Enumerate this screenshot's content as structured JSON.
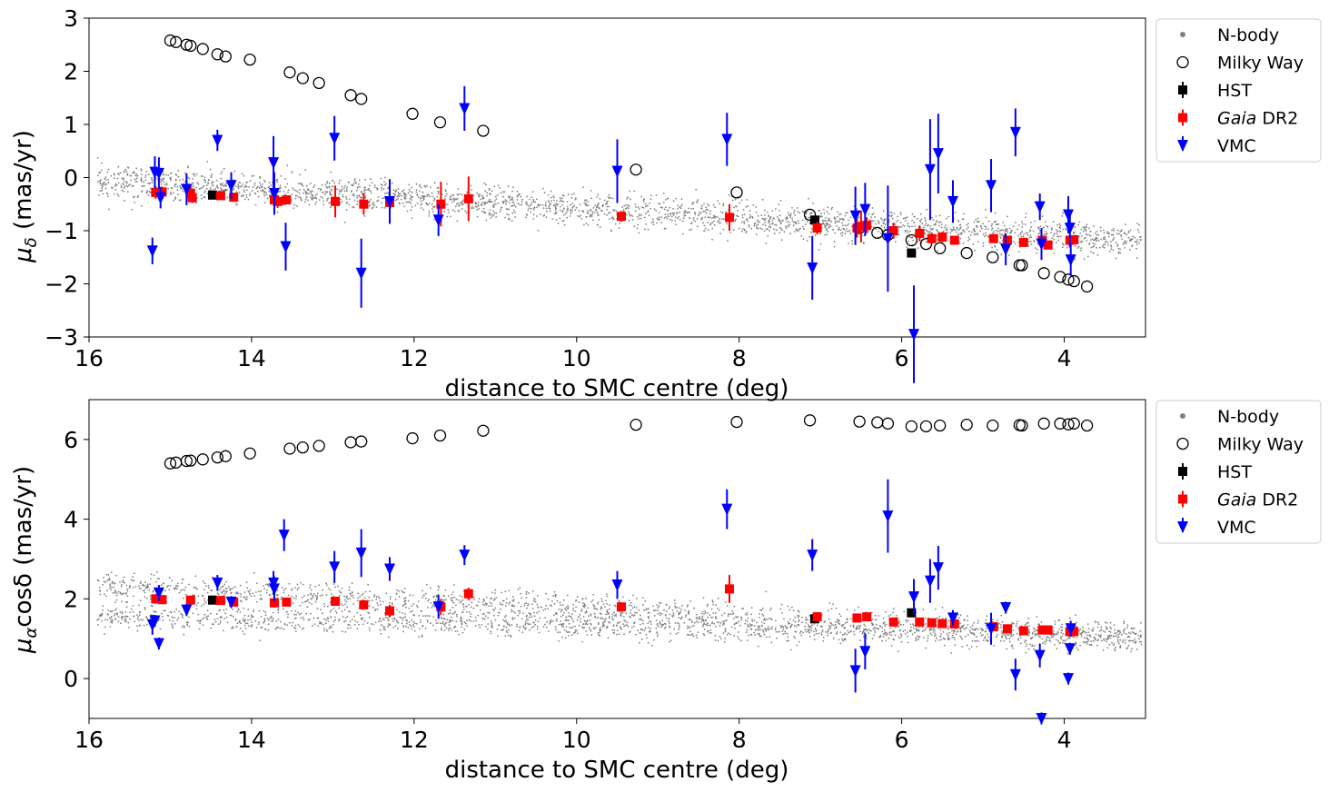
{
  "colors": {
    "nbody": "#808080",
    "milkyway": "#000000",
    "hst": "#000000",
    "gaia": "#ff0000",
    "vmc": "#0000ff"
  },
  "legend": [
    {
      "key": "nbody",
      "label": "N-body",
      "marker": "dot"
    },
    {
      "key": "milkyway",
      "label": "Milky Way",
      "marker": "circle"
    },
    {
      "key": "hst",
      "label": "HST",
      "marker": "square"
    },
    {
      "key": "gaia",
      "label_italic": "Gaia",
      "label_rest": " DR2",
      "marker": "square"
    },
    {
      "key": "vmc",
      "label": "VMC",
      "marker": "triangle"
    }
  ],
  "chart_data": [
    {
      "type": "scatter",
      "panel": "top",
      "xlabel": "distance to SMC centre (deg)",
      "ylabel_symbol": "μ",
      "ylabel_sub": "δ",
      "ylabel_rest": " (mas/yr)",
      "xlim": [
        16,
        3
      ],
      "ylim": [
        -3,
        3
      ],
      "xticks": [
        16,
        14,
        12,
        10,
        8,
        6,
        4
      ],
      "yticks": [
        3,
        2,
        1,
        0,
        -1,
        -2,
        -3
      ],
      "ytick_labels": [
        "3",
        "2",
        "1",
        "0",
        "−1",
        "−2",
        "−3"
      ],
      "nbody_band": {
        "x_range": [
          15.9,
          3.05
        ],
        "bands": [
          {
            "y_start": -0.05,
            "y_end": -1.2,
            "spread": 0.28
          }
        ],
        "count": 2600
      },
      "series": [
        {
          "name": "Milky Way",
          "key": "milkyway",
          "points": [
            [
              15.0,
              2.58
            ],
            [
              14.93,
              2.55
            ],
            [
              14.8,
              2.5
            ],
            [
              14.75,
              2.48
            ],
            [
              14.6,
              2.42
            ],
            [
              14.42,
              2.32
            ],
            [
              14.32,
              2.28
            ],
            [
              14.02,
              2.22
            ],
            [
              13.53,
              1.98
            ],
            [
              13.37,
              1.87
            ],
            [
              13.17,
              1.78
            ],
            [
              12.78,
              1.55
            ],
            [
              12.65,
              1.48
            ],
            [
              12.02,
              1.2
            ],
            [
              11.68,
              1.04
            ],
            [
              11.15,
              0.88
            ],
            [
              9.27,
              0.15
            ],
            [
              8.03,
              -0.28
            ],
            [
              7.13,
              -0.7
            ],
            [
              6.52,
              -0.95
            ],
            [
              6.3,
              -1.04
            ],
            [
              6.17,
              -1.08
            ],
            [
              5.88,
              -1.18
            ],
            [
              5.7,
              -1.25
            ],
            [
              5.53,
              -1.33
            ],
            [
              5.2,
              -1.42
            ],
            [
              4.88,
              -1.5
            ],
            [
              4.55,
              -1.65
            ],
            [
              4.52,
              -1.65
            ],
            [
              4.25,
              -1.8
            ],
            [
              4.05,
              -1.87
            ],
            [
              3.95,
              -1.92
            ],
            [
              3.88,
              -1.95
            ],
            [
              3.72,
              -2.05
            ]
          ]
        },
        {
          "name": "HST",
          "key": "hst",
          "points": [
            [
              14.48,
              -0.33,
              0.05
            ],
            [
              7.07,
              -0.8,
              0.06
            ],
            [
              5.88,
              -1.42,
              0.06
            ]
          ]
        },
        {
          "name": "Gaia DR2",
          "key": "gaia",
          "points": [
            [
              15.18,
              -0.28,
              0.12
            ],
            [
              15.1,
              -0.27,
              0.1
            ],
            [
              14.75,
              -0.3,
              0.15
            ],
            [
              14.73,
              -0.38,
              0.1
            ],
            [
              14.38,
              -0.34,
              0.08
            ],
            [
              14.22,
              -0.37,
              0.07
            ],
            [
              13.72,
              -0.42,
              0.15
            ],
            [
              13.68,
              -0.45,
              0.12
            ],
            [
              13.57,
              -0.42,
              0.08
            ],
            [
              12.97,
              -0.45,
              0.3
            ],
            [
              12.62,
              -0.5,
              0.2
            ],
            [
              12.3,
              -0.47,
              0.4
            ],
            [
              11.67,
              -0.5,
              0.42
            ],
            [
              11.33,
              -0.4,
              0.42
            ],
            [
              9.45,
              -0.73,
              0.1
            ],
            [
              8.12,
              -0.75,
              0.25
            ],
            [
              7.04,
              -0.95,
              0.12
            ],
            [
              6.55,
              -0.95,
              0.18
            ],
            [
              6.5,
              -0.92,
              0.3
            ],
            [
              6.43,
              -0.9,
              0.15
            ],
            [
              6.1,
              -1.0,
              0.15
            ],
            [
              5.78,
              -1.05,
              0.15
            ],
            [
              5.63,
              -1.15,
              0.1
            ],
            [
              5.5,
              -1.12,
              0.1
            ],
            [
              5.35,
              -1.18,
              0.08
            ],
            [
              4.87,
              -1.15,
              0.08
            ],
            [
              4.7,
              -1.18,
              0.06
            ],
            [
              4.5,
              -1.22,
              0.06
            ],
            [
              4.27,
              -1.18,
              0.06
            ],
            [
              4.2,
              -1.27,
              0.06
            ],
            [
              3.93,
              -1.18,
              0.06
            ],
            [
              3.88,
              -1.17,
              0.06
            ]
          ]
        },
        {
          "name": "VMC",
          "key": "vmc",
          "points": [
            [
              15.22,
              -1.38,
              0.25
            ],
            [
              15.19,
              0.1,
              0.3
            ],
            [
              15.14,
              0.08,
              0.3
            ],
            [
              15.12,
              -0.38,
              0.2
            ],
            [
              14.8,
              -0.22,
              0.3
            ],
            [
              14.42,
              0.7,
              0.2
            ],
            [
              14.25,
              -0.15,
              0.25
            ],
            [
              13.73,
              0.28,
              0.5
            ],
            [
              13.72,
              -0.3,
              0.4
            ],
            [
              13.58,
              -1.3,
              0.45
            ],
            [
              12.98,
              0.74,
              0.42
            ],
            [
              12.65,
              -1.8,
              0.65
            ],
            [
              12.3,
              -0.45,
              0.42
            ],
            [
              11.7,
              -0.8,
              0.3
            ],
            [
              11.38,
              1.3,
              0.42
            ],
            [
              9.5,
              0.12,
              0.6
            ],
            [
              8.15,
              0.72,
              0.5
            ],
            [
              7.1,
              -1.7,
              0.6
            ],
            [
              6.57,
              -0.72,
              0.55
            ],
            [
              6.45,
              -0.6,
              0.5
            ],
            [
              6.17,
              -1.15,
              1.0
            ],
            [
              5.85,
              -2.95,
              0.92
            ],
            [
              5.65,
              0.15,
              0.95
            ],
            [
              5.55,
              0.45,
              0.75
            ],
            [
              5.37,
              -0.45,
              0.4
            ],
            [
              4.9,
              -0.15,
              0.5
            ],
            [
              4.72,
              -1.35,
              0.3
            ],
            [
              4.6,
              0.85,
              0.45
            ],
            [
              4.3,
              -0.55,
              0.25
            ],
            [
              4.28,
              -1.25,
              0.3
            ],
            [
              3.95,
              -0.7,
              0.35
            ],
            [
              3.93,
              -0.95,
              0.35
            ],
            [
              3.92,
              -1.55,
              0.3
            ]
          ]
        }
      ]
    },
    {
      "type": "scatter",
      "panel": "bottom",
      "xlabel": "distance to SMC centre (deg)",
      "ylabel_symbol": "μ",
      "ylabel_sub": "α",
      "ylabel_rest": "cosδ (mas/yr)",
      "xlim": [
        16,
        3
      ],
      "ylim": [
        -1,
        7
      ],
      "xticks": [
        16,
        14,
        12,
        10,
        8,
        6,
        4
      ],
      "yticks": [
        6,
        4,
        2,
        0
      ],
      "ytick_labels": [
        "6",
        "4",
        "2",
        "0"
      ],
      "nbody_band": {
        "x_range": [
          15.9,
          3.05
        ],
        "bands": [
          {
            "y_start": 2.35,
            "y_end": 1.05,
            "spread": 0.32
          },
          {
            "y_start": 1.55,
            "y_end": 1.05,
            "spread": 0.3
          }
        ],
        "count": 3000
      },
      "series": [
        {
          "name": "Milky Way",
          "key": "milkyway",
          "points": [
            [
              15.0,
              5.4
            ],
            [
              14.93,
              5.42
            ],
            [
              14.8,
              5.46
            ],
            [
              14.75,
              5.47
            ],
            [
              14.6,
              5.5
            ],
            [
              14.42,
              5.55
            ],
            [
              14.32,
              5.58
            ],
            [
              14.02,
              5.65
            ],
            [
              13.53,
              5.77
            ],
            [
              13.37,
              5.8
            ],
            [
              13.17,
              5.84
            ],
            [
              12.78,
              5.93
            ],
            [
              12.65,
              5.95
            ],
            [
              12.02,
              6.03
            ],
            [
              11.68,
              6.1
            ],
            [
              11.15,
              6.22
            ],
            [
              9.27,
              6.37
            ],
            [
              8.03,
              6.44
            ],
            [
              7.13,
              6.48
            ],
            [
              6.52,
              6.45
            ],
            [
              6.3,
              6.43
            ],
            [
              6.17,
              6.4
            ],
            [
              5.88,
              6.33
            ],
            [
              5.7,
              6.33
            ],
            [
              5.53,
              6.35
            ],
            [
              5.2,
              6.37
            ],
            [
              4.88,
              6.35
            ],
            [
              4.55,
              6.36
            ],
            [
              4.52,
              6.35
            ],
            [
              4.25,
              6.4
            ],
            [
              4.05,
              6.4
            ],
            [
              3.95,
              6.38
            ],
            [
              3.88,
              6.4
            ],
            [
              3.72,
              6.35
            ]
          ]
        },
        {
          "name": "HST",
          "key": "hst",
          "points": [
            [
              14.48,
              1.97,
              0.05
            ],
            [
              7.07,
              1.5,
              0.06
            ],
            [
              5.88,
              1.65,
              0.06
            ]
          ]
        },
        {
          "name": "Gaia DR2",
          "key": "gaia",
          "points": [
            [
              15.18,
              2.0,
              0.12
            ],
            [
              15.1,
              1.98,
              0.1
            ],
            [
              14.75,
              1.97,
              0.1
            ],
            [
              14.38,
              1.96,
              0.08
            ],
            [
              14.22,
              1.92,
              0.07
            ],
            [
              13.72,
              1.9,
              0.12
            ],
            [
              13.57,
              1.92,
              0.08
            ],
            [
              12.97,
              1.94,
              0.1
            ],
            [
              12.62,
              1.85,
              0.12
            ],
            [
              12.3,
              1.7,
              0.15
            ],
            [
              11.67,
              1.8,
              0.2
            ],
            [
              11.33,
              2.13,
              0.15
            ],
            [
              9.45,
              1.8,
              0.1
            ],
            [
              8.12,
              2.25,
              0.35
            ],
            [
              7.04,
              1.55,
              0.12
            ],
            [
              6.55,
              1.52,
              0.1
            ],
            [
              6.43,
              1.55,
              0.1
            ],
            [
              6.1,
              1.42,
              0.1
            ],
            [
              5.78,
              1.42,
              0.1
            ],
            [
              5.63,
              1.4,
              0.08
            ],
            [
              5.5,
              1.38,
              0.08
            ],
            [
              5.35,
              1.37,
              0.08
            ],
            [
              4.87,
              1.3,
              0.08
            ],
            [
              4.7,
              1.25,
              0.06
            ],
            [
              4.5,
              1.2,
              0.06
            ],
            [
              4.27,
              1.22,
              0.06
            ],
            [
              4.2,
              1.22,
              0.06
            ],
            [
              3.93,
              1.18,
              0.06
            ],
            [
              3.88,
              1.18,
              0.06
            ]
          ]
        },
        {
          "name": "VMC",
          "key": "vmc",
          "points": [
            [
              15.22,
              1.35,
              0.25
            ],
            [
              15.19,
              1.45,
              0.15
            ],
            [
              15.14,
              0.88,
              0.15
            ],
            [
              15.14,
              2.15,
              0.2
            ],
            [
              14.8,
              1.72,
              0.15
            ],
            [
              14.42,
              2.4,
              0.2
            ],
            [
              14.25,
              1.92,
              0.15
            ],
            [
              13.73,
              2.4,
              0.3
            ],
            [
              13.72,
              2.25,
              0.3
            ],
            [
              13.6,
              3.6,
              0.4
            ],
            [
              12.98,
              2.8,
              0.4
            ],
            [
              12.65,
              3.15,
              0.6
            ],
            [
              12.3,
              2.75,
              0.3
            ],
            [
              11.7,
              1.8,
              0.3
            ],
            [
              11.38,
              3.1,
              0.25
            ],
            [
              9.5,
              2.35,
              0.35
            ],
            [
              8.15,
              4.25,
              0.5
            ],
            [
              7.1,
              3.1,
              0.4
            ],
            [
              6.57,
              0.2,
              0.55
            ],
            [
              6.45,
              0.68,
              0.45
            ],
            [
              6.17,
              4.08,
              0.92
            ],
            [
              5.85,
              2.05,
              0.45
            ],
            [
              5.65,
              2.45,
              0.55
            ],
            [
              5.55,
              2.78,
              0.55
            ],
            [
              5.37,
              1.52,
              0.2
            ],
            [
              4.9,
              1.25,
              0.4
            ],
            [
              4.72,
              1.78,
              0.15
            ],
            [
              4.6,
              0.1,
              0.4
            ],
            [
              4.3,
              0.58,
              0.3
            ],
            [
              4.28,
              -1.0,
              0.15
            ],
            [
              3.95,
              0.0,
              0.15
            ],
            [
              3.93,
              0.75,
              0.15
            ],
            [
              3.92,
              1.25,
              0.2
            ]
          ]
        }
      ]
    }
  ]
}
